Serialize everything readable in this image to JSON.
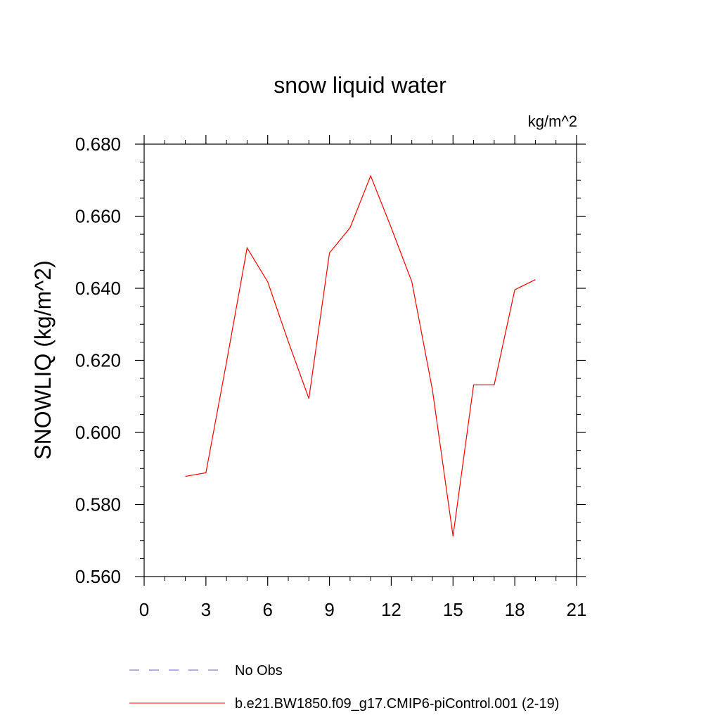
{
  "chart_data": {
    "type": "line",
    "title": "snow liquid water",
    "units": "kg/m^2",
    "ylabel": "SNOWLIQ  (kg/m^2)",
    "xlabel": "",
    "xlim": [
      0,
      21
    ],
    "ylim": [
      0.56,
      0.68
    ],
    "x_ticks": [
      "0",
      "3",
      "6",
      "9",
      "12",
      "15",
      "18",
      "21"
    ],
    "y_ticks": [
      "0.560",
      "0.580",
      "0.600",
      "0.620",
      "0.640",
      "0.660",
      "0.680"
    ],
    "grid": false,
    "legend_placement": "bottom",
    "series": [
      {
        "name": "No Obs",
        "color": "#6a5acd",
        "dash": "dashed",
        "values": []
      },
      {
        "name": "b.e21.BW1850.f09_g17.CMIP6-piControl.001 (2-19)",
        "color": "#ff0000",
        "dash": "solid",
        "x": [
          2,
          3,
          4,
          5,
          6,
          7,
          8,
          9,
          10,
          11,
          12,
          13,
          14,
          15,
          16,
          17,
          18,
          19
        ],
        "values": [
          0.5878,
          0.5888,
          0.6195,
          0.6512,
          0.6418,
          0.6252,
          0.6094,
          0.6498,
          0.6568,
          0.6712,
          0.6568,
          0.6418,
          0.6118,
          0.5712,
          0.6132,
          0.6132,
          0.6396,
          0.6424
        ]
      }
    ]
  }
}
